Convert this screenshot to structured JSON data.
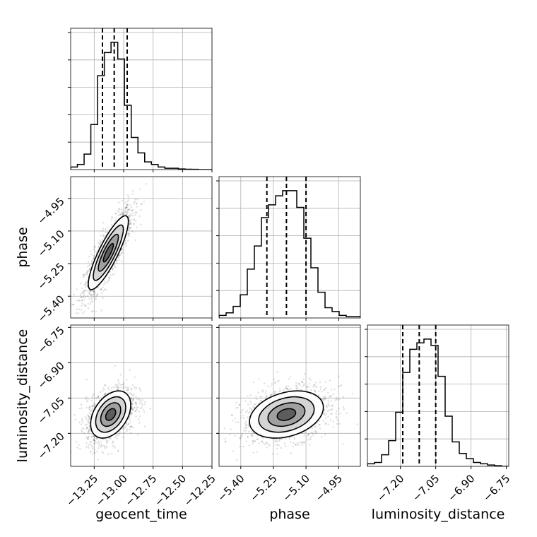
{
  "chart_data": {
    "type": "corner",
    "parameters": [
      "geocent_time",
      "phase",
      "luminosity_distance"
    ],
    "axes": {
      "geocent_time": {
        "label": "geocent_time",
        "range": [
          -13.45,
          -12.25
        ],
        "ticks": [
          -13.25,
          -13.0,
          -12.75,
          -12.5,
          -12.25
        ],
        "tick_labels": [
          "−13.25",
          "−13.00",
          "−12.75",
          "−12.50",
          "−12.25"
        ]
      },
      "phase": {
        "label": "phase",
        "range": [
          -5.5,
          -4.85
        ],
        "ticks": [
          -5.4,
          -5.25,
          -5.1,
          -4.95
        ],
        "tick_labels": [
          "−5.40",
          "−5.25",
          "−5.10",
          "−4.95"
        ]
      },
      "luminosity_distance": {
        "label": "luminosity_distance",
        "range": [
          -7.34,
          -6.74
        ],
        "ticks": [
          -7.2,
          -7.05,
          -6.9,
          -6.75
        ],
        "tick_labels": [
          "−7.20",
          "−7.05",
          "−6.90",
          "−6.75"
        ]
      }
    },
    "quantiles": {
      "geocent_time": [
        -13.18,
        -13.08,
        -12.97
      ],
      "phase": [
        -5.28,
        -5.19,
        -5.1
      ],
      "luminosity_distance": [
        -7.19,
        -7.12,
        -7.05
      ]
    },
    "histograms": {
      "geocent_time": [
        0.02,
        0.04,
        0.12,
        0.35,
        0.73,
        0.91,
        0.99,
        0.86,
        0.5,
        0.25,
        0.13,
        0.06,
        0.04,
        0.02,
        0.01,
        0.01,
        0.005,
        0.003,
        0.002,
        0,
        0
      ],
      "phase": [
        0.02,
        0.04,
        0.09,
        0.18,
        0.38,
        0.56,
        0.78,
        0.88,
        0.95,
        0.99,
        0.99,
        0.86,
        0.62,
        0.39,
        0.2,
        0.08,
        0.05,
        0.02,
        0.01,
        0.01
      ],
      "luminosity_distance": [
        0.02,
        0.03,
        0.09,
        0.2,
        0.42,
        0.73,
        0.91,
        0.96,
        0.99,
        0.94,
        0.7,
        0.39,
        0.19,
        0.1,
        0.06,
        0.03,
        0.02,
        0.01,
        0.005,
        0
      ]
    },
    "pairs": [
      {
        "x": "geocent_time",
        "y": "phase",
        "center": [
          -13.13,
          -5.2
        ],
        "sd": [
          0.085,
          0.085
        ],
        "corr": 0.85
      },
      {
        "x": "geocent_time",
        "y": "luminosity_distance",
        "center": [
          -13.11,
          -7.12
        ],
        "sd": [
          0.085,
          0.05
        ],
        "corr": 0.4
      },
      {
        "x": "phase",
        "y": "luminosity_distance",
        "center": [
          -5.19,
          -7.12
        ],
        "sd": [
          0.085,
          0.05
        ],
        "corr": 0.3
      }
    ],
    "contour_levels_sigma": [
      0.5,
      1.0,
      1.5,
      2.0
    ],
    "grid": true
  }
}
